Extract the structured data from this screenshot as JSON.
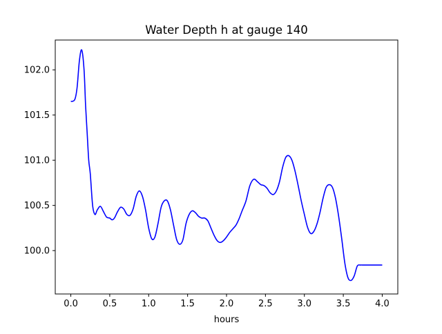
{
  "chart_data": {
    "type": "line",
    "title": "Water Depth h at gauge 140",
    "xlabel": "hours",
    "ylabel": "",
    "xlim": [
      -0.2,
      4.2
    ],
    "ylim": [
      99.52,
      102.33
    ],
    "xticks": [
      0.0,
      0.5,
      1.0,
      1.5,
      2.0,
      2.5,
      3.0,
      3.5,
      4.0
    ],
    "xtick_labels": [
      "0.0",
      "0.5",
      "1.0",
      "1.5",
      "2.0",
      "2.5",
      "3.0",
      "3.5",
      "4.0"
    ],
    "yticks": [
      100.0,
      100.5,
      101.0,
      101.5,
      102.0
    ],
    "ytick_labels": [
      "100.0",
      "100.5",
      "101.0",
      "101.5",
      "102.0"
    ],
    "grid": false,
    "line_color": "#0000ff",
    "series": [
      {
        "x": [
          0.0,
          0.05,
          0.08,
          0.11,
          0.14,
          0.17,
          0.19,
          0.21,
          0.23,
          0.25,
          0.28,
          0.31,
          0.34,
          0.38,
          0.42,
          0.46,
          0.5,
          0.53,
          0.56,
          0.6,
          0.64,
          0.68,
          0.72,
          0.76,
          0.8,
          0.84,
          0.88,
          0.92,
          0.96,
          1.0,
          1.04,
          1.08,
          1.12,
          1.16,
          1.2,
          1.24,
          1.28,
          1.32,
          1.36,
          1.4,
          1.44,
          1.48,
          1.52,
          1.56,
          1.6,
          1.64,
          1.68,
          1.72,
          1.76,
          1.8,
          1.84,
          1.88,
          1.92,
          1.96,
          2.0,
          2.04,
          2.08,
          2.12,
          2.16,
          2.2,
          2.25,
          2.3,
          2.35,
          2.4,
          2.44,
          2.48,
          2.52,
          2.56,
          2.6,
          2.64,
          2.68,
          2.72,
          2.76,
          2.8,
          2.84,
          2.88,
          2.92,
          2.96,
          3.0,
          3.04,
          3.08,
          3.12,
          3.16,
          3.2,
          3.24,
          3.28,
          3.32,
          3.36,
          3.4,
          3.44,
          3.48,
          3.52,
          3.56,
          3.6,
          3.64,
          3.68,
          3.72,
          3.76,
          3.8,
          3.84,
          3.88,
          3.92,
          3.96,
          4.0
        ],
        "values": [
          101.65,
          101.67,
          101.8,
          102.1,
          102.22,
          102.0,
          101.6,
          101.3,
          101.0,
          100.85,
          100.5,
          100.4,
          100.45,
          100.49,
          100.43,
          100.37,
          100.36,
          100.34,
          100.36,
          100.43,
          100.48,
          100.46,
          100.4,
          100.39,
          100.46,
          100.6,
          100.66,
          100.6,
          100.45,
          100.25,
          100.13,
          100.15,
          100.3,
          100.48,
          100.55,
          100.55,
          100.45,
          100.28,
          100.12,
          100.07,
          100.12,
          100.3,
          100.4,
          100.44,
          100.42,
          100.38,
          100.36,
          100.36,
          100.33,
          100.25,
          100.17,
          100.11,
          100.09,
          100.11,
          100.15,
          100.2,
          100.24,
          100.28,
          100.35,
          100.44,
          100.55,
          100.72,
          100.79,
          100.76,
          100.73,
          100.72,
          100.69,
          100.64,
          100.62,
          100.66,
          100.76,
          100.92,
          101.03,
          101.05,
          101.0,
          100.88,
          100.72,
          100.55,
          100.4,
          100.26,
          100.19,
          100.21,
          100.29,
          100.42,
          100.58,
          100.7,
          100.73,
          100.7,
          100.58,
          100.38,
          100.13,
          99.86,
          99.7,
          99.67,
          99.72,
          99.83,
          99.84,
          99.84,
          99.84,
          99.84,
          99.84,
          99.84,
          99.84,
          99.84
        ]
      }
    ]
  }
}
